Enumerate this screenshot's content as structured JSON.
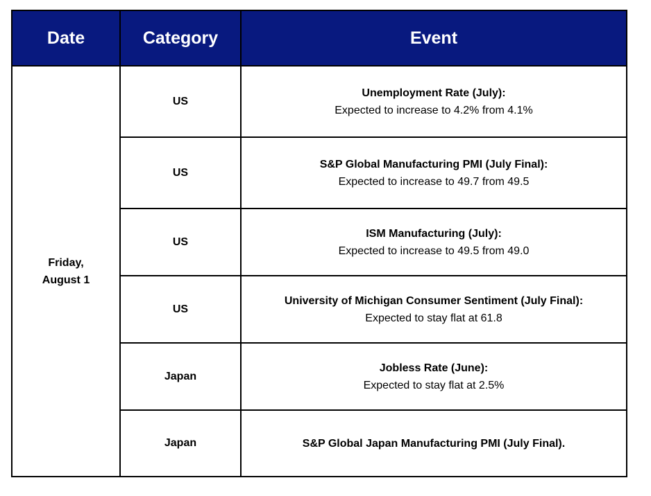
{
  "headers": {
    "date": "Date",
    "category": "Category",
    "event": "Event"
  },
  "date": {
    "line1": "Friday,",
    "line2": "August 1"
  },
  "rows": [
    {
      "category": "US",
      "title": "Unemployment Rate (July):",
      "detail": "Expected to increase to 4.2% from 4.1%"
    },
    {
      "category": "US",
      "title": "S&P Global Manufacturing PMI (July Final):",
      "detail": "Expected to increase to 49.7 from 49.5"
    },
    {
      "category": "US",
      "title": "ISM Manufacturing (July):",
      "detail": "Expected to increase to 49.5 from 49.0"
    },
    {
      "category": "US",
      "title": "University of Michigan Consumer Sentiment (July Final):",
      "detail": "Expected to stay flat at 61.8"
    },
    {
      "category": "Japan",
      "title": "Jobless Rate (June):",
      "detail": "Expected to stay flat at 2.5%"
    },
    {
      "category": "Japan",
      "title": "S&P Global Japan Manufacturing PMI (July Final).",
      "detail": ""
    }
  ],
  "colors": {
    "header_background": "#08197f",
    "header_text": "#ffffff",
    "border": "#000000"
  }
}
